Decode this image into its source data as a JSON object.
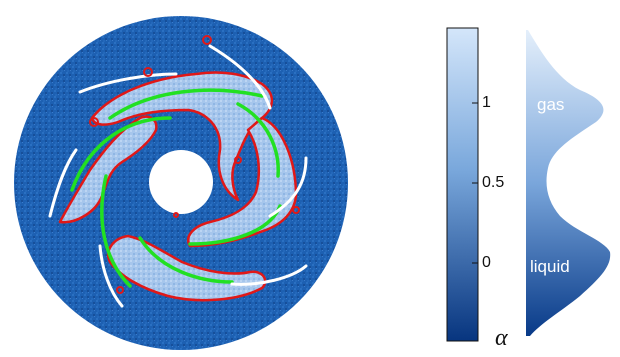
{
  "colorbar": {
    "ticks": [
      "1",
      "0.5",
      "0"
    ],
    "tick_values": [
      1,
      0.5,
      0
    ],
    "symbol": "α"
  },
  "distribution": {
    "gas_label": "gas",
    "liquid_label": "liquid"
  },
  "colors": {
    "disc_blue": "#1b5fb0",
    "gas_pocket": "#a9c8ee",
    "contour_red": "#e01818",
    "blade_green": "#22e022",
    "blade_white": "#ffffff",
    "colorbar_top": "#cfe2f8",
    "colorbar_bottom": "#0a3a8c"
  }
}
